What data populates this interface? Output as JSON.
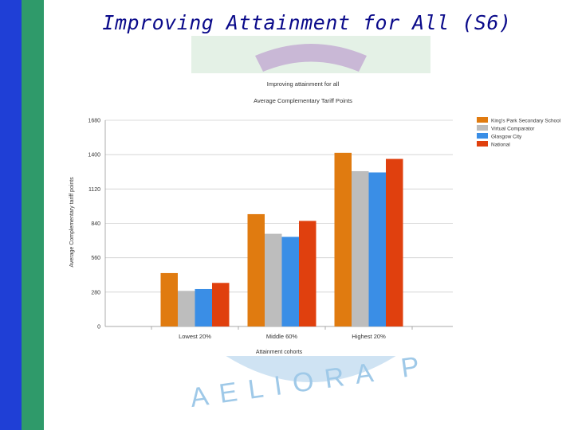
{
  "slide": {
    "title": "Improving Attainment for All (S6)"
  },
  "watermark": {
    "text": "AELIORA P",
    "color": "#9fc9e8"
  },
  "colors": {
    "left_bar_blue": "#1f3fd6",
    "left_bar_green": "#2f9a6a",
    "title": "#0a0a8a"
  },
  "chart_data": {
    "type": "bar",
    "title": "Improving attainment for all",
    "subtitle": "Average Complementary Tariff Points",
    "xlabel": "Attainment cohorts",
    "ylabel": "Average Complementary tariff points",
    "categories": [
      "Lowest 20%",
      "Middle 60%",
      "Highest 20%"
    ],
    "ylim": [
      0,
      1680
    ],
    "yticks": [
      0,
      280,
      560,
      840,
      1120,
      1400,
      1680
    ],
    "grid": true,
    "legend_position": "right",
    "series": [
      {
        "name": "King's Park Secondary School",
        "color": "#e07b10",
        "values": [
          435,
          915,
          1415
        ]
      },
      {
        "name": "Virtual Comparator",
        "color": "#bdbdbd",
        "values": [
          290,
          755,
          1265
        ]
      },
      {
        "name": "Glasgow City",
        "color": "#3a8ee6",
        "values": [
          305,
          730,
          1255
        ]
      },
      {
        "name": "National",
        "color": "#e0400e",
        "values": [
          355,
          860,
          1365
        ]
      }
    ]
  }
}
